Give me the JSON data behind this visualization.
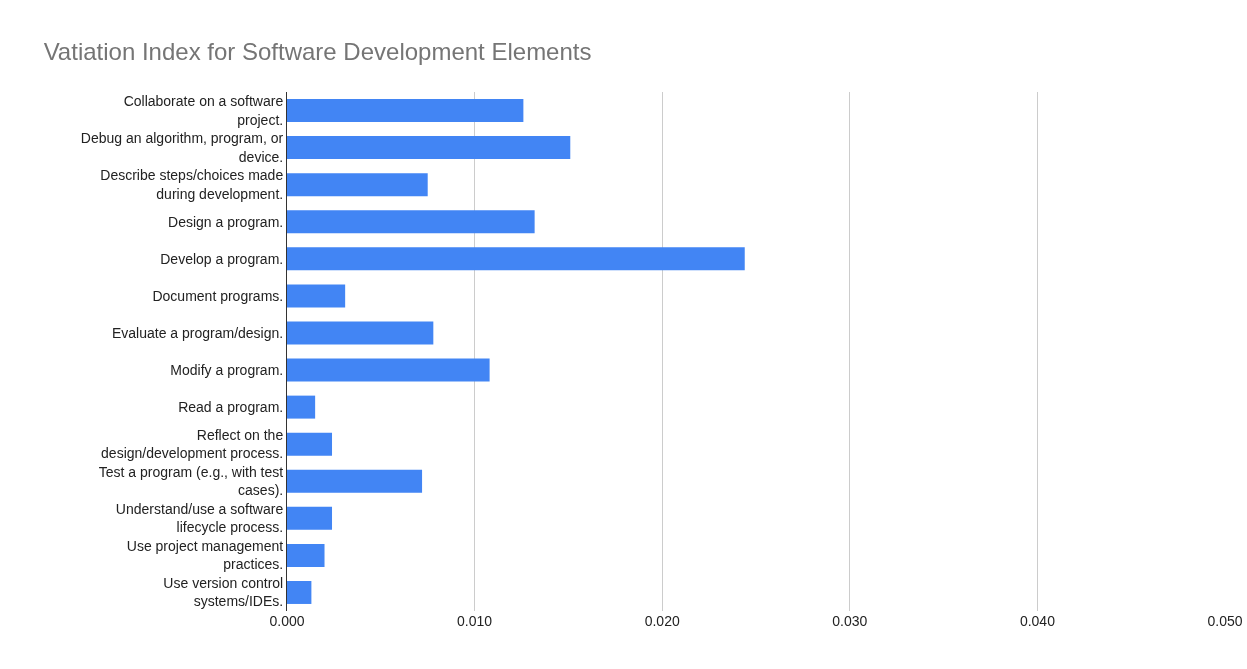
{
  "chart_data": {
    "type": "bar",
    "orientation": "horizontal",
    "title": "Vatiation Index for Software Development Elements",
    "categories": [
      "Collaborate on a software project.",
      "Debug an algorithm, program, or device.",
      "Describe steps/choices made during development.",
      "Design a program.",
      "Develop a program.",
      "Document programs.",
      "Evaluate a program/design.",
      "Modify a program.",
      "Read a program.",
      "Reflect on the design/development process.",
      "Test a program (e.g., with test cases).",
      "Understand/use a software lifecycle process.",
      "Use project management practices.",
      "Use version control systems/IDEs."
    ],
    "values": [
      0.0126,
      0.0151,
      0.0075,
      0.0132,
      0.0244,
      0.0031,
      0.0078,
      0.0108,
      0.0015,
      0.0024,
      0.0072,
      0.0024,
      0.002,
      0.0013
    ],
    "color": "#4285f4",
    "xlim": [
      0,
      0.05
    ],
    "xticks": [
      {
        "value": 0,
        "label": "0.000"
      },
      {
        "value": 0.01,
        "label": "0.010"
      },
      {
        "value": 0.02,
        "label": "0.020"
      },
      {
        "value": 0.03,
        "label": "0.030"
      },
      {
        "value": 0.04,
        "label": "0.040"
      },
      {
        "value": 0.05,
        "label": "0.050"
      }
    ],
    "grid": "x"
  }
}
